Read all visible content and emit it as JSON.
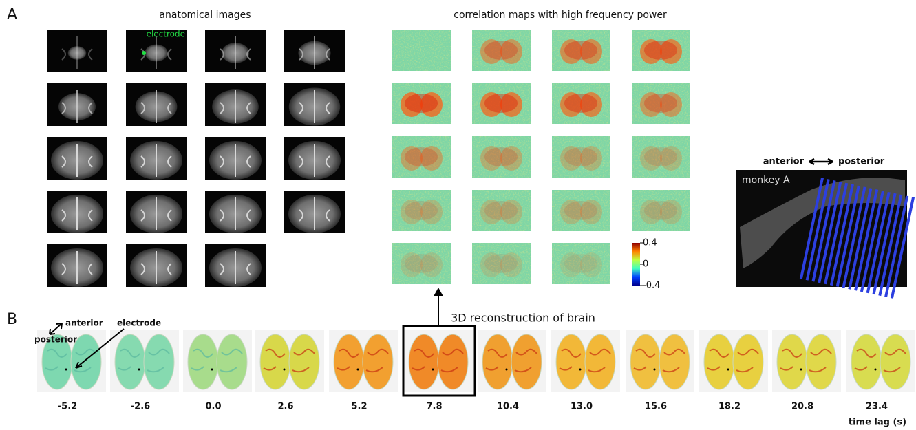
{
  "panel_a": {
    "label": "A",
    "anatomical": {
      "title": "anatomical images",
      "electrode_label": "electrode"
    },
    "correlation": {
      "title": "correlation maps with high frequency power",
      "colorbar": {
        "lim": [
          -0.4,
          0.4
        ],
        "ticks": [
          0.4,
          0,
          -0.4
        ]
      }
    },
    "sagittal": {
      "anterior": "anterior",
      "posterior": "posterior",
      "subject": "monkey A"
    }
  },
  "panel_b": {
    "label": "B",
    "title": "3D reconstruction of brain",
    "anterior": "anterior",
    "posterior": "posterior",
    "electrode": "electrode",
    "time_lags": [
      "-5.2",
      "-2.6",
      "0.0",
      "2.6",
      "5.2",
      "7.8",
      "10.4",
      "13.0",
      "15.6",
      "18.2",
      "20.8",
      "23.4"
    ],
    "time_unit": "time lag (s)"
  }
}
